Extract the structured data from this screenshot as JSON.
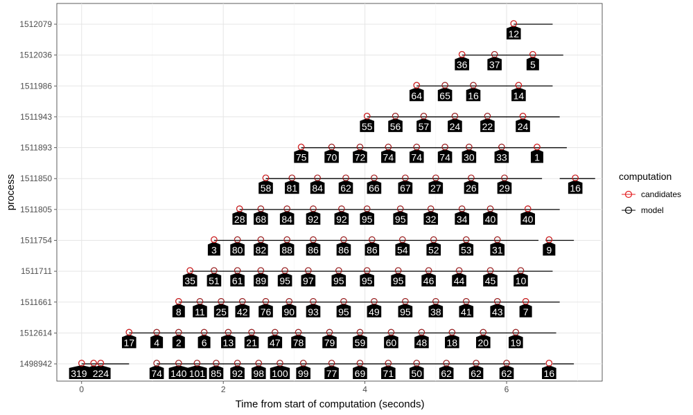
{
  "chart_data": {
    "type": "timeline",
    "xlabel": "Time from start of computation (seconds)",
    "ylabel": "process",
    "xlim": [
      -0.35,
      7.35
    ],
    "x_ticks": [
      0,
      2,
      4,
      6
    ],
    "grid": true,
    "legend": {
      "title": "computation",
      "position": "right",
      "entries": [
        {
          "name": "candidates",
          "color": "#e31a1c"
        },
        {
          "name": "model",
          "color": "#000000"
        }
      ]
    },
    "processes": [
      "1498942",
      "1512614",
      "1511661",
      "1511711",
      "1511754",
      "1511805",
      "1511850",
      "1511893",
      "1511943",
      "1511986",
      "1512036",
      "1512079"
    ],
    "rows": [
      {
        "process": "1498942",
        "line": [
          0,
          0.67
        ],
        "segments": [
          [
            1.06,
            6.55
          ],
          [
            6.65,
            6.95
          ]
        ],
        "events": [
          [
            0.0,
            "3199",
            1
          ],
          [
            0.17,
            "0",
            1
          ],
          [
            0.27,
            "224",
            1
          ],
          [
            1.06,
            "74",
            0
          ],
          [
            1.37,
            "140",
            0
          ],
          [
            1.63,
            "101",
            0
          ],
          [
            1.9,
            "85",
            0
          ],
          [
            2.2,
            "92",
            0
          ],
          [
            2.5,
            "98",
            0
          ],
          [
            2.8,
            "100",
            0
          ],
          [
            3.13,
            "99",
            0
          ],
          [
            3.53,
            "77",
            0
          ],
          [
            3.93,
            "69",
            0
          ],
          [
            4.33,
            "71",
            0
          ],
          [
            4.73,
            "50",
            0
          ],
          [
            5.15,
            "62",
            0
          ],
          [
            5.57,
            "62",
            0
          ],
          [
            6.0,
            "62",
            0
          ],
          [
            6.6,
            "16",
            1
          ]
        ]
      },
      {
        "process": "1512614",
        "line": [
          0.67,
          6.7
        ],
        "events": [
          [
            0.67,
            "17",
            1
          ],
          [
            1.06,
            "4",
            0
          ],
          [
            1.37,
            "2",
            0
          ],
          [
            1.73,
            "6",
            0
          ],
          [
            2.07,
            "13",
            0
          ],
          [
            2.4,
            "21",
            0
          ],
          [
            2.73,
            "47",
            0
          ],
          [
            3.06,
            "78",
            0
          ],
          [
            3.5,
            "79",
            0
          ],
          [
            3.93,
            "59",
            0
          ],
          [
            4.37,
            "60",
            0
          ],
          [
            4.8,
            "48",
            0
          ],
          [
            5.23,
            "18",
            0
          ],
          [
            5.67,
            "20",
            0
          ],
          [
            6.13,
            "19",
            0
          ]
        ]
      },
      {
        "process": "1511661",
        "line": [
          1.37,
          6.75
        ],
        "events": [
          [
            1.37,
            "8",
            1
          ],
          [
            1.67,
            "11",
            0
          ],
          [
            1.97,
            "25",
            0
          ],
          [
            2.27,
            "42",
            0
          ],
          [
            2.6,
            "76",
            0
          ],
          [
            2.93,
            "90",
            0
          ],
          [
            3.27,
            "93",
            0
          ],
          [
            3.7,
            "95",
            0
          ],
          [
            4.13,
            "49",
            0
          ],
          [
            4.57,
            "95",
            0
          ],
          [
            5.0,
            "38",
            0
          ],
          [
            5.43,
            "41",
            0
          ],
          [
            5.87,
            "43",
            0
          ],
          [
            6.27,
            "7",
            1
          ]
        ]
      },
      {
        "process": "1511711",
        "line": [
          1.53,
          6.65
        ],
        "events": [
          [
            1.53,
            "35",
            1
          ],
          [
            1.87,
            "51",
            0
          ],
          [
            2.2,
            "61",
            0
          ],
          [
            2.53,
            "89",
            0
          ],
          [
            2.87,
            "95",
            0
          ],
          [
            3.2,
            "97",
            0
          ],
          [
            3.63,
            "95",
            0
          ],
          [
            4.03,
            "95",
            0
          ],
          [
            4.47,
            "95",
            0
          ],
          [
            4.9,
            "46",
            0
          ],
          [
            5.33,
            "44",
            0
          ],
          [
            5.77,
            "45",
            0
          ],
          [
            6.2,
            "10",
            0
          ]
        ]
      },
      {
        "process": "1511754",
        "line": [
          1.87,
          6.45
        ],
        "segments": [
          [
            6.55,
            6.95
          ]
        ],
        "events": [
          [
            1.87,
            "3",
            1
          ],
          [
            2.2,
            "80",
            0
          ],
          [
            2.53,
            "82",
            0
          ],
          [
            2.9,
            "88",
            0
          ],
          [
            3.27,
            "86",
            0
          ],
          [
            3.7,
            "86",
            0
          ],
          [
            4.1,
            "86",
            0
          ],
          [
            4.53,
            "54",
            0
          ],
          [
            4.97,
            "52",
            0
          ],
          [
            5.43,
            "53",
            0
          ],
          [
            5.87,
            "31",
            0
          ],
          [
            6.6,
            "9",
            1
          ]
        ]
      },
      {
        "process": "1511805",
        "line": [
          2.23,
          6.75
        ],
        "events": [
          [
            2.23,
            "28",
            1
          ],
          [
            2.53,
            "68",
            0
          ],
          [
            2.9,
            "84",
            0
          ],
          [
            3.27,
            "92",
            0
          ],
          [
            3.67,
            "92",
            0
          ],
          [
            4.03,
            "95",
            0
          ],
          [
            4.5,
            "95",
            0
          ],
          [
            4.93,
            "32",
            0
          ],
          [
            5.37,
            "34",
            0
          ],
          [
            5.77,
            "40",
            0
          ],
          [
            6.3,
            "40",
            1
          ]
        ]
      },
      {
        "process": "1511850",
        "line": [
          2.6,
          6.5
        ],
        "segments": [
          [
            6.75,
            7.25
          ]
        ],
        "events": [
          [
            2.6,
            "58",
            1
          ],
          [
            2.97,
            "81",
            0
          ],
          [
            3.33,
            "84",
            0
          ],
          [
            3.73,
            "62",
            0
          ],
          [
            4.13,
            "66",
            0
          ],
          [
            4.57,
            "67",
            0
          ],
          [
            5.0,
            "27",
            0
          ],
          [
            5.5,
            "26",
            0
          ],
          [
            5.97,
            "29",
            0
          ],
          [
            6.97,
            "16",
            1
          ]
        ]
      },
      {
        "process": "1511893",
        "line": [
          3.1,
          6.85
        ],
        "events": [
          [
            3.1,
            "75",
            1
          ],
          [
            3.53,
            "70",
            0
          ],
          [
            3.93,
            "72",
            0
          ],
          [
            4.33,
            "74",
            0
          ],
          [
            4.73,
            "74",
            0
          ],
          [
            5.13,
            "74",
            0
          ],
          [
            5.47,
            "30",
            0
          ],
          [
            5.93,
            "33",
            0
          ],
          [
            6.43,
            "1",
            1
          ]
        ]
      },
      {
        "process": "1511943",
        "line": [
          4.03,
          6.75
        ],
        "events": [
          [
            4.03,
            "55",
            1
          ],
          [
            4.43,
            "56",
            0
          ],
          [
            4.83,
            "57",
            0
          ],
          [
            5.27,
            "24",
            0
          ],
          [
            5.73,
            "22",
            0
          ],
          [
            6.23,
            "24",
            1
          ]
        ]
      },
      {
        "process": "1511986",
        "line": [
          4.73,
          6.65
        ],
        "events": [
          [
            4.73,
            "64",
            1
          ],
          [
            5.13,
            "65",
            0
          ],
          [
            5.53,
            "16",
            0
          ],
          [
            6.17,
            "14",
            1
          ]
        ]
      },
      {
        "process": "1512036",
        "line": [
          5.37,
          6.8
        ],
        "events": [
          [
            5.37,
            "36",
            1
          ],
          [
            5.83,
            "37",
            0
          ],
          [
            6.37,
            "5",
            1
          ]
        ]
      },
      {
        "process": "1512079",
        "line": [
          6.1,
          6.65
        ],
        "events": [
          [
            6.1,
            "12",
            1
          ]
        ]
      }
    ]
  }
}
